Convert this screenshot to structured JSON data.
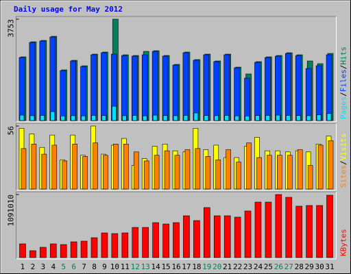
{
  "chart_data": [
    {
      "type": "bar",
      "title": "Daily usage for May 2012",
      "ylim": [
        0,
        3753
      ],
      "yticks": [
        3753
      ],
      "legend_separator": "/",
      "series": [
        {
          "name": "Pages",
          "color": "#00e0ff",
          "values": [
            200,
            180,
            190,
            330,
            170,
            180,
            175,
            190,
            185,
            530,
            180,
            190,
            175,
            200,
            185,
            180,
            190,
            280,
            185,
            180,
            190,
            175,
            170,
            185,
            190,
            200,
            190,
            185,
            180,
            210,
            260
          ]
        },
        {
          "name": "Files",
          "color": "#0040ff",
          "values": [
            2333,
            2891,
            2942,
            3094,
            1851,
            2206,
            2003,
            2435,
            2511,
            2460,
            2409,
            2384,
            2435,
            2561,
            2384,
            2054,
            2511,
            2232,
            2435,
            2181,
            2435,
            1953,
            1572,
            2156,
            2333,
            2384,
            2485,
            2409,
            1927,
            2029,
            2435
          ]
        },
        {
          "name": "Hits",
          "color": "#00805c",
          "values": [
            2358,
            2916,
            2967,
            3119,
            1876,
            2231,
            2028,
            2460,
            2536,
            3753,
            2434,
            2409,
            2561,
            2586,
            2409,
            2079,
            2536,
            2257,
            2460,
            2206,
            2460,
            1978,
            1725,
            2181,
            2358,
            2409,
            2510,
            2434,
            2206,
            2105,
            2485
          ]
        }
      ]
    },
    {
      "type": "bar",
      "ylim": [
        0,
        56
      ],
      "yticks": [
        56
      ],
      "legend_separator": "/",
      "series": [
        {
          "name": "Sites",
          "color": "#ff8000",
          "values": [
            36,
            40,
            31,
            39,
            25,
            40,
            29,
            41,
            30,
            40,
            40,
            33,
            25,
            30,
            34,
            30,
            35,
            36,
            29,
            26,
            35,
            24,
            41,
            28,
            30,
            30,
            30,
            35,
            21,
            39,
            43
          ]
        },
        {
          "name": "Visits",
          "color": "#ffff00",
          "values": [
            54,
            49,
            37,
            48,
            26,
            48,
            30,
            56,
            31,
            39,
            45,
            21,
            27,
            38,
            40,
            34,
            33,
            54,
            35,
            39,
            28,
            28,
            38,
            46,
            34,
            34,
            33,
            34,
            33,
            40,
            47
          ]
        }
      ]
    },
    {
      "type": "bar",
      "ylim": [
        0,
        1091010
      ],
      "yticks": [
        1091010
      ],
      "series": [
        {
          "name": "KBytes",
          "color": "#ff0000",
          "values": [
            237180,
            118590,
            177885,
            237180,
            225321,
            272757,
            284616,
            343911,
            426924,
            415065,
            426924,
            521796,
            521796,
            604809,
            581091,
            604809,
            723399,
            640386,
            865707,
            723399,
            723399,
            699681,
            806412,
            960579,
            960579,
            1091010,
            1043592,
            889425,
            901284,
            901284,
            1079151
          ]
        }
      ],
      "categories": [
        "1",
        "2",
        "3",
        "4",
        "5",
        "6",
        "7",
        "8",
        "9",
        "10",
        "11",
        "12",
        "13",
        "14",
        "15",
        "16",
        "17",
        "18",
        "19",
        "20",
        "21",
        "22",
        "23",
        "24",
        "25",
        "26",
        "27",
        "28",
        "29",
        "30",
        "31"
      ],
      "category_colors": [
        "#000000",
        "#000000",
        "#000000",
        "#000000",
        "#00805c",
        "#00805c",
        "#000000",
        "#000000",
        "#000000",
        "#000000",
        "#000000",
        "#00805c",
        "#00805c",
        "#000000",
        "#000000",
        "#000000",
        "#000000",
        "#000000",
        "#00805c",
        "#00805c",
        "#000000",
        "#000000",
        "#000000",
        "#000000",
        "#000000",
        "#00805c",
        "#00805c",
        "#000000",
        "#000000",
        "#000000",
        "#000000"
      ]
    }
  ]
}
